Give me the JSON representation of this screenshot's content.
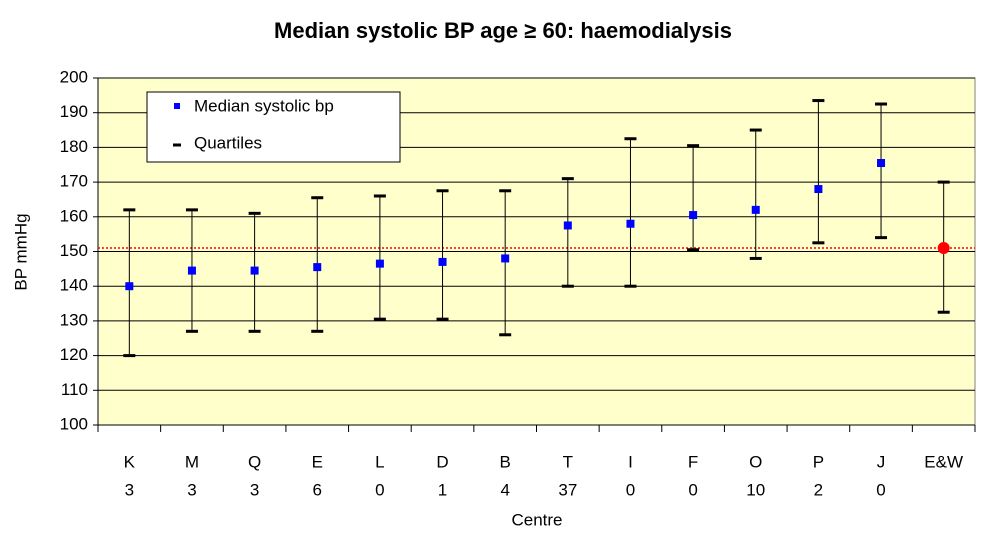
{
  "chart_data": {
    "type": "errorbar",
    "title": "Median systolic BP age ≥ 60: haemodialysis",
    "x_label": "Centre",
    "y_label": "BP mmHg",
    "categories": [
      "K",
      "M",
      "Q",
      "E",
      "L",
      "D",
      "B",
      "T",
      "I",
      "F",
      "O",
      "P",
      "J",
      "E&W"
    ],
    "category_counts": [
      3,
      3,
      3,
      6,
      0,
      1,
      4,
      37,
      0,
      0,
      10,
      2,
      0,
      null
    ],
    "series": [
      {
        "name": "Median systolic bp",
        "colors": [
          "#0000ff",
          "#0000ff",
          "#0000ff",
          "#0000ff",
          "#0000ff",
          "#0000ff",
          "#0000ff",
          "#0000ff",
          "#0000ff",
          "#0000ff",
          "#0000ff",
          "#0000ff",
          "#0000ff",
          "#ff0000"
        ],
        "values": [
          140,
          144.5,
          144.5,
          145.5,
          146.5,
          147,
          148,
          157.5,
          158,
          160.5,
          162,
          168,
          175.5,
          151
        ]
      },
      {
        "name": "Quartiles",
        "color": "#000000",
        "lower": [
          120,
          127,
          127,
          127,
          130.5,
          130.5,
          126,
          140,
          140,
          150.5,
          148,
          152.5,
          154,
          132.5
        ],
        "upper": [
          162,
          162,
          161,
          165.5,
          166,
          167.5,
          167.5,
          171,
          182.5,
          180.5,
          185,
          193.5,
          192.5,
          170
        ]
      }
    ],
    "reference_line": {
      "value": 151,
      "color": "#ff0000"
    },
    "ylim": [
      100,
      200
    ],
    "yticks": [
      100,
      110,
      120,
      130,
      140,
      150,
      160,
      170,
      180,
      190,
      200
    ],
    "grid": true,
    "plot_background": "#ffffcc"
  }
}
